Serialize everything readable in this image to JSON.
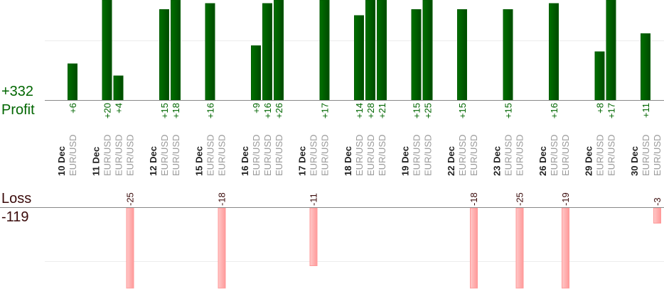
{
  "chart_data": {
    "type": "bar",
    "profit_total": "+332",
    "profit_label": "Profit",
    "loss_label": "Loss",
    "loss_total": "-119",
    "colors": {
      "profit": "#006600",
      "loss": "#ff9f9f",
      "profit_text": "#006600",
      "loss_text": "#3a0a0a",
      "pair_text": "#999999"
    },
    "groups": [
      {
        "date": "10 Dec",
        "trades": [
          {
            "pair": "EUR/USD",
            "value": 6,
            "label": "+6"
          }
        ]
      },
      {
        "date": "11 Dec",
        "trades": [
          {
            "pair": "EUR/USD",
            "value": 20,
            "label": "+20"
          },
          {
            "pair": "EUR/USD",
            "value": 4,
            "label": "+4"
          },
          {
            "pair": "EUR/USD",
            "value": -25,
            "label": "-25"
          }
        ]
      },
      {
        "date": "12 Dec",
        "trades": [
          {
            "pair": "EUR/USD",
            "value": 15,
            "label": "+15"
          },
          {
            "pair": "EUR/USD",
            "value": 18,
            "label": "+18"
          }
        ]
      },
      {
        "date": "15 Dec",
        "trades": [
          {
            "pair": "EUR/USD",
            "value": 16,
            "label": "+16"
          },
          {
            "pair": "EUR/USD",
            "value": -18,
            "label": "-18"
          }
        ]
      },
      {
        "date": "16 Dec",
        "trades": [
          {
            "pair": "EUR/USD",
            "value": 9,
            "label": "+9"
          },
          {
            "pair": "EUR/USD",
            "value": 16,
            "label": "+16"
          },
          {
            "pair": "EUR/USD",
            "value": 26,
            "label": "+26"
          }
        ]
      },
      {
        "date": "17 Dec",
        "trades": [
          {
            "pair": "EUR/USD",
            "value": -11,
            "label": "-11"
          },
          {
            "pair": "EUR/USD",
            "value": 17,
            "label": "+17"
          }
        ]
      },
      {
        "date": "18 Dec",
        "trades": [
          {
            "pair": "EUR/USD",
            "value": 14,
            "label": "+14"
          },
          {
            "pair": "EUR/USD",
            "value": 28,
            "label": "+28"
          },
          {
            "pair": "EUR/USD",
            "value": 21,
            "label": "+21"
          }
        ]
      },
      {
        "date": "19 Dec",
        "trades": [
          {
            "pair": "EUR/USD",
            "value": 15,
            "label": "+15"
          },
          {
            "pair": "EUR/USD",
            "value": 25,
            "label": "+25"
          }
        ]
      },
      {
        "date": "22 Dec",
        "trades": [
          {
            "pair": "EUR/USD",
            "value": 15,
            "label": "+15"
          },
          {
            "pair": "EUR/USD",
            "value": -18,
            "label": "-18"
          }
        ]
      },
      {
        "date": "23 Dec",
        "trades": [
          {
            "pair": "EUR/USD",
            "value": 15,
            "label": "+15"
          },
          {
            "pair": "EUR/USD",
            "value": -25,
            "label": "-25"
          }
        ]
      },
      {
        "date": "26 Dec",
        "trades": [
          {
            "pair": "EUR/USD",
            "value": 16,
            "label": "+16"
          },
          {
            "pair": "EUR/USD",
            "value": -19,
            "label": "-19"
          }
        ]
      },
      {
        "date": "29 Dec",
        "trades": [
          {
            "pair": "EUR/USD",
            "value": 8,
            "label": "+8"
          },
          {
            "pair": "EUR/USD",
            "value": 17,
            "label": "+17"
          }
        ]
      },
      {
        "date": "30 Dec",
        "trades": [
          {
            "pair": "EUR/USD",
            "value": 11,
            "label": "+11"
          },
          {
            "pair": "EUR/USD",
            "value": -3,
            "label": "-3"
          }
        ]
      }
    ],
    "grid": true
  }
}
